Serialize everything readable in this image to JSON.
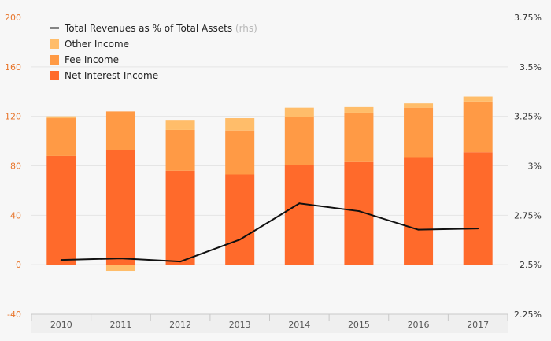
{
  "chart_data": {
    "type": "bar",
    "stacked": true,
    "categories": [
      "2010",
      "2011",
      "2012",
      "2013",
      "2014",
      "2015",
      "2016",
      "2017"
    ],
    "series": [
      {
        "name": "Net Interest Income",
        "axis": "left",
        "color": "#ff6a2b",
        "values": [
          88,
          92.5,
          76,
          73,
          80.5,
          83,
          87,
          91
        ]
      },
      {
        "name": "Fee Income",
        "axis": "left",
        "color": "#ff9a45",
        "values": [
          30.5,
          31.5,
          33,
          35.5,
          39,
          40,
          40,
          41
        ]
      },
      {
        "name": "Other Income",
        "axis": "left",
        "color": "#ffbd6a",
        "values": [
          1.5,
          -5,
          7.5,
          10,
          7.5,
          4.5,
          3.5,
          4
        ]
      },
      {
        "name": "Total Revenues as % of Total Assets",
        "axis": "right",
        "type": "line",
        "color": "#111111",
        "values": [
          2.524,
          2.532,
          2.516,
          2.627,
          2.81,
          2.771,
          2.677,
          2.683
        ]
      }
    ],
    "legend_note": "(rhs)",
    "legend_position": "top-left",
    "y_left": {
      "lim": [
        -40,
        200
      ],
      "ticks": [
        "-40",
        "0",
        "40",
        "80",
        "120",
        "160",
        "200"
      ]
    },
    "y_right": {
      "lim": [
        2.25,
        3.75
      ],
      "ticks": [
        "2.25%",
        "2.5%",
        "2.75%",
        "3%",
        "3.25%",
        "3.5%",
        "3.75%"
      ]
    },
    "grid": "horizontal",
    "title": "",
    "xlabel": "",
    "ylabel": ""
  }
}
